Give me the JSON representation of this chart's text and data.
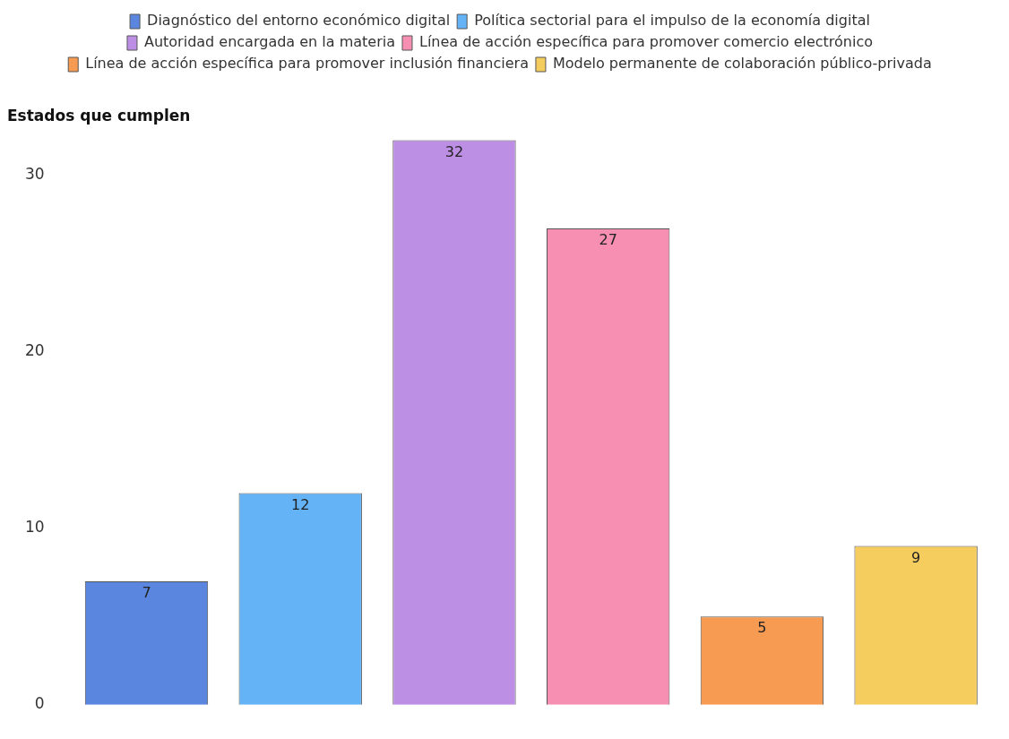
{
  "chart_data": {
    "type": "bar",
    "ylabel": "Estados que cumplen",
    "categories": [
      null,
      null,
      null,
      null,
      null,
      null
    ],
    "stacked": true,
    "series": [
      {
        "name": "Diagnóstico del entorno económico digital",
        "color": "#5a86e0",
        "values": [
          7,
          null,
          null,
          null,
          null,
          null
        ]
      },
      {
        "name": "Política sectorial para el impulso de la economía digital",
        "color": "#64b3f7",
        "values": [
          null,
          12,
          null,
          null,
          null,
          null
        ]
      },
      {
        "name": "Autoridad encargada en la materia",
        "color": "#bd8fe4",
        "values": [
          null,
          null,
          32,
          null,
          null,
          null
        ]
      },
      {
        "name": "Línea de acción específica para promover comercio electrónico",
        "color": "#f78fb3",
        "values": [
          null,
          null,
          null,
          27,
          null,
          null
        ]
      },
      {
        "name": "Línea de acción específica para promover inclusión financiera",
        "color": "#f79a52",
        "values": [
          null,
          null,
          null,
          null,
          5,
          null
        ]
      },
      {
        "name": "Modelo permanente de colaboración público-privada",
        "color": "#f5cc5e",
        "values": [
          null,
          null,
          null,
          null,
          null,
          9
        ]
      }
    ],
    "ylim": [
      0,
      32
    ],
    "yticks": [
      0,
      10,
      20,
      30
    ],
    "grid": false,
    "legend": "top",
    "data_labels": true
  }
}
